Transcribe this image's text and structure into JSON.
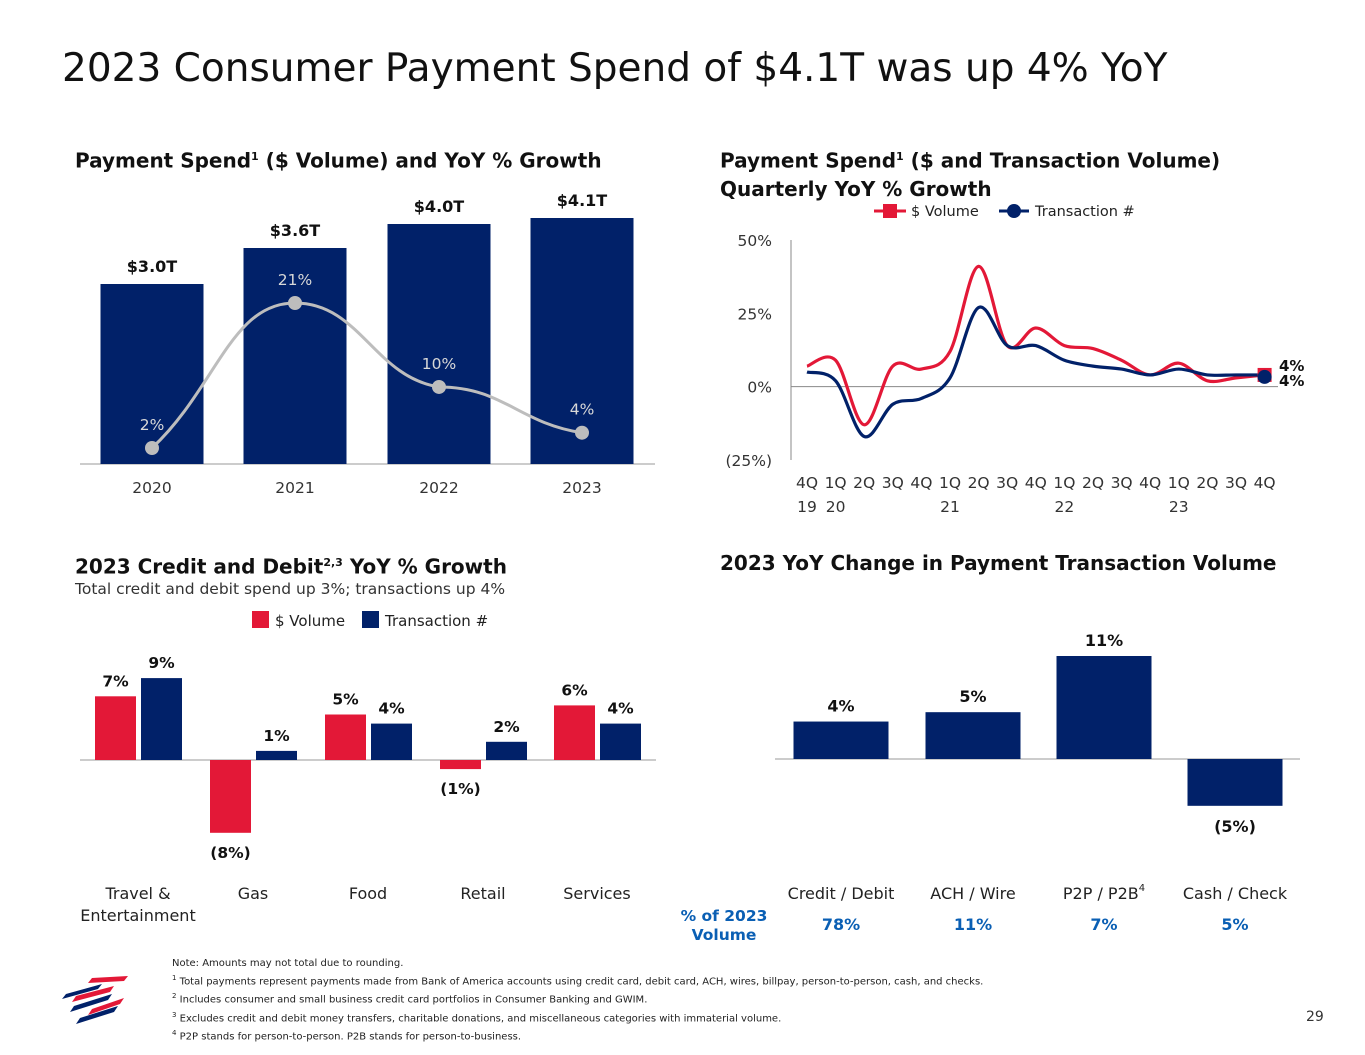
{
  "page": {
    "title": "2023 Consumer Payment Spend of $4.1T was up 4% YoY",
    "page_number": "29"
  },
  "footnotes": {
    "note": "Note: Amounts may not total due to rounding.",
    "items": [
      {
        "marker": "1",
        "text": "Total payments represent payments made from Bank of America accounts using credit card, debit card, ACH, wires, billpay, person-to-person, cash, and checks."
      },
      {
        "marker": "2",
        "text": "Includes consumer and small business credit card portfolios in Consumer Banking and GWIM."
      },
      {
        "marker": "3",
        "text": "Excludes credit and debit money transfers, charitable donations, and miscellaneous categories with immaterial volume."
      },
      {
        "marker": "4",
        "text": "P2P stands for person-to-person. P2B stands for person-to-business."
      }
    ]
  },
  "colors": {
    "navy": "#012169",
    "red": "#e31837",
    "gray": "#bdbdbd",
    "blue_text": "#0a5fb4"
  },
  "chart_data": [
    {
      "type": "bar",
      "title": "Payment Spend",
      "title_sup": "1",
      "title_rest": "($ Volume) and YoY % Growth",
      "categories": [
        "2020",
        "2021",
        "2022",
        "2023"
      ],
      "values": [
        3.0,
        3.6,
        4.0,
        4.1
      ],
      "value_labels": [
        "$3.0T",
        "$3.6T",
        "$4.0T",
        "$4.1T"
      ],
      "growth": [
        2,
        21,
        10,
        4
      ],
      "growth_labels": [
        "2%",
        "21%",
        "10%",
        "4%"
      ],
      "ylim": [
        0,
        4.1
      ]
    },
    {
      "type": "line",
      "title_line1": "Payment Spend",
      "title_sup": "1",
      "title_line1_rest": "($ and Transaction Volume)",
      "title_line2": "Quarterly YoY % Growth",
      "y_ticks": [
        "50%",
        "25%",
        "0%",
        "(25%)"
      ],
      "ylim": [
        -25,
        50
      ],
      "x_labels_top": [
        "4Q",
        "1Q",
        "2Q",
        "3Q",
        "4Q",
        "1Q",
        "2Q",
        "3Q",
        "4Q",
        "1Q",
        "2Q",
        "3Q",
        "4Q",
        "1Q",
        "2Q",
        "3Q",
        "4Q"
      ],
      "x_labels_bottom": [
        "19",
        "20",
        "",
        "",
        "",
        "21",
        "",
        "",
        "",
        "22",
        "",
        "",
        "",
        "23",
        "",
        "",
        ""
      ],
      "series": [
        {
          "name": "$ Volume",
          "color": "#e31837",
          "values": [
            7,
            9,
            -13,
            7,
            6,
            12,
            41,
            14,
            20,
            14,
            13,
            9,
            4,
            8,
            2,
            3,
            4
          ]
        },
        {
          "name": "Transaction #",
          "color": "#012169",
          "values": [
            5,
            2,
            -17,
            -6,
            -4,
            3,
            27,
            14,
            14,
            9,
            7,
            6,
            4,
            6,
            4,
            4,
            4
          ]
        }
      ],
      "end_labels": [
        "4%",
        "4%"
      ]
    },
    {
      "type": "bar",
      "title": "2023 Credit and Debit",
      "title_sup": "2,3",
      "title_rest": "YoY % Growth",
      "subtitle": "Total credit and debit spend up 3%; transactions up 4%",
      "categories": [
        "Travel & Entertainment",
        "Gas",
        "Food",
        "Retail",
        "Services"
      ],
      "category_lines": [
        [
          "Travel &",
          "Entertainment"
        ],
        [
          "Gas"
        ],
        [
          "Food"
        ],
        [
          "Retail"
        ],
        [
          "Services"
        ]
      ],
      "series": [
        {
          "name": "$ Volume",
          "color": "#e31837",
          "values": [
            7,
            -8,
            5,
            -1,
            6
          ],
          "labels": [
            "7%",
            "(8%)",
            "5%",
            "(1%)",
            "6%"
          ]
        },
        {
          "name": "Transaction #",
          "color": "#012169",
          "values": [
            9,
            1,
            4,
            2,
            4
          ],
          "labels": [
            "9%",
            "1%",
            "4%",
            "2%",
            "4%"
          ]
        }
      ]
    },
    {
      "type": "bar",
      "title": "2023 YoY Change in Payment Transaction Volume",
      "categories": [
        "Credit / Debit",
        "ACH / Wire",
        "P2P / P2B",
        "Cash / Check"
      ],
      "category_sups": [
        "",
        "",
        "4",
        ""
      ],
      "values": [
        4,
        5,
        11,
        -5
      ],
      "value_labels": [
        "4%",
        "5%",
        "11%",
        "(5%)"
      ],
      "share_label_line1": "% of 2023",
      "share_label_line2": "Volume",
      "shares": [
        "78%",
        "11%",
        "7%",
        "5%"
      ]
    }
  ]
}
